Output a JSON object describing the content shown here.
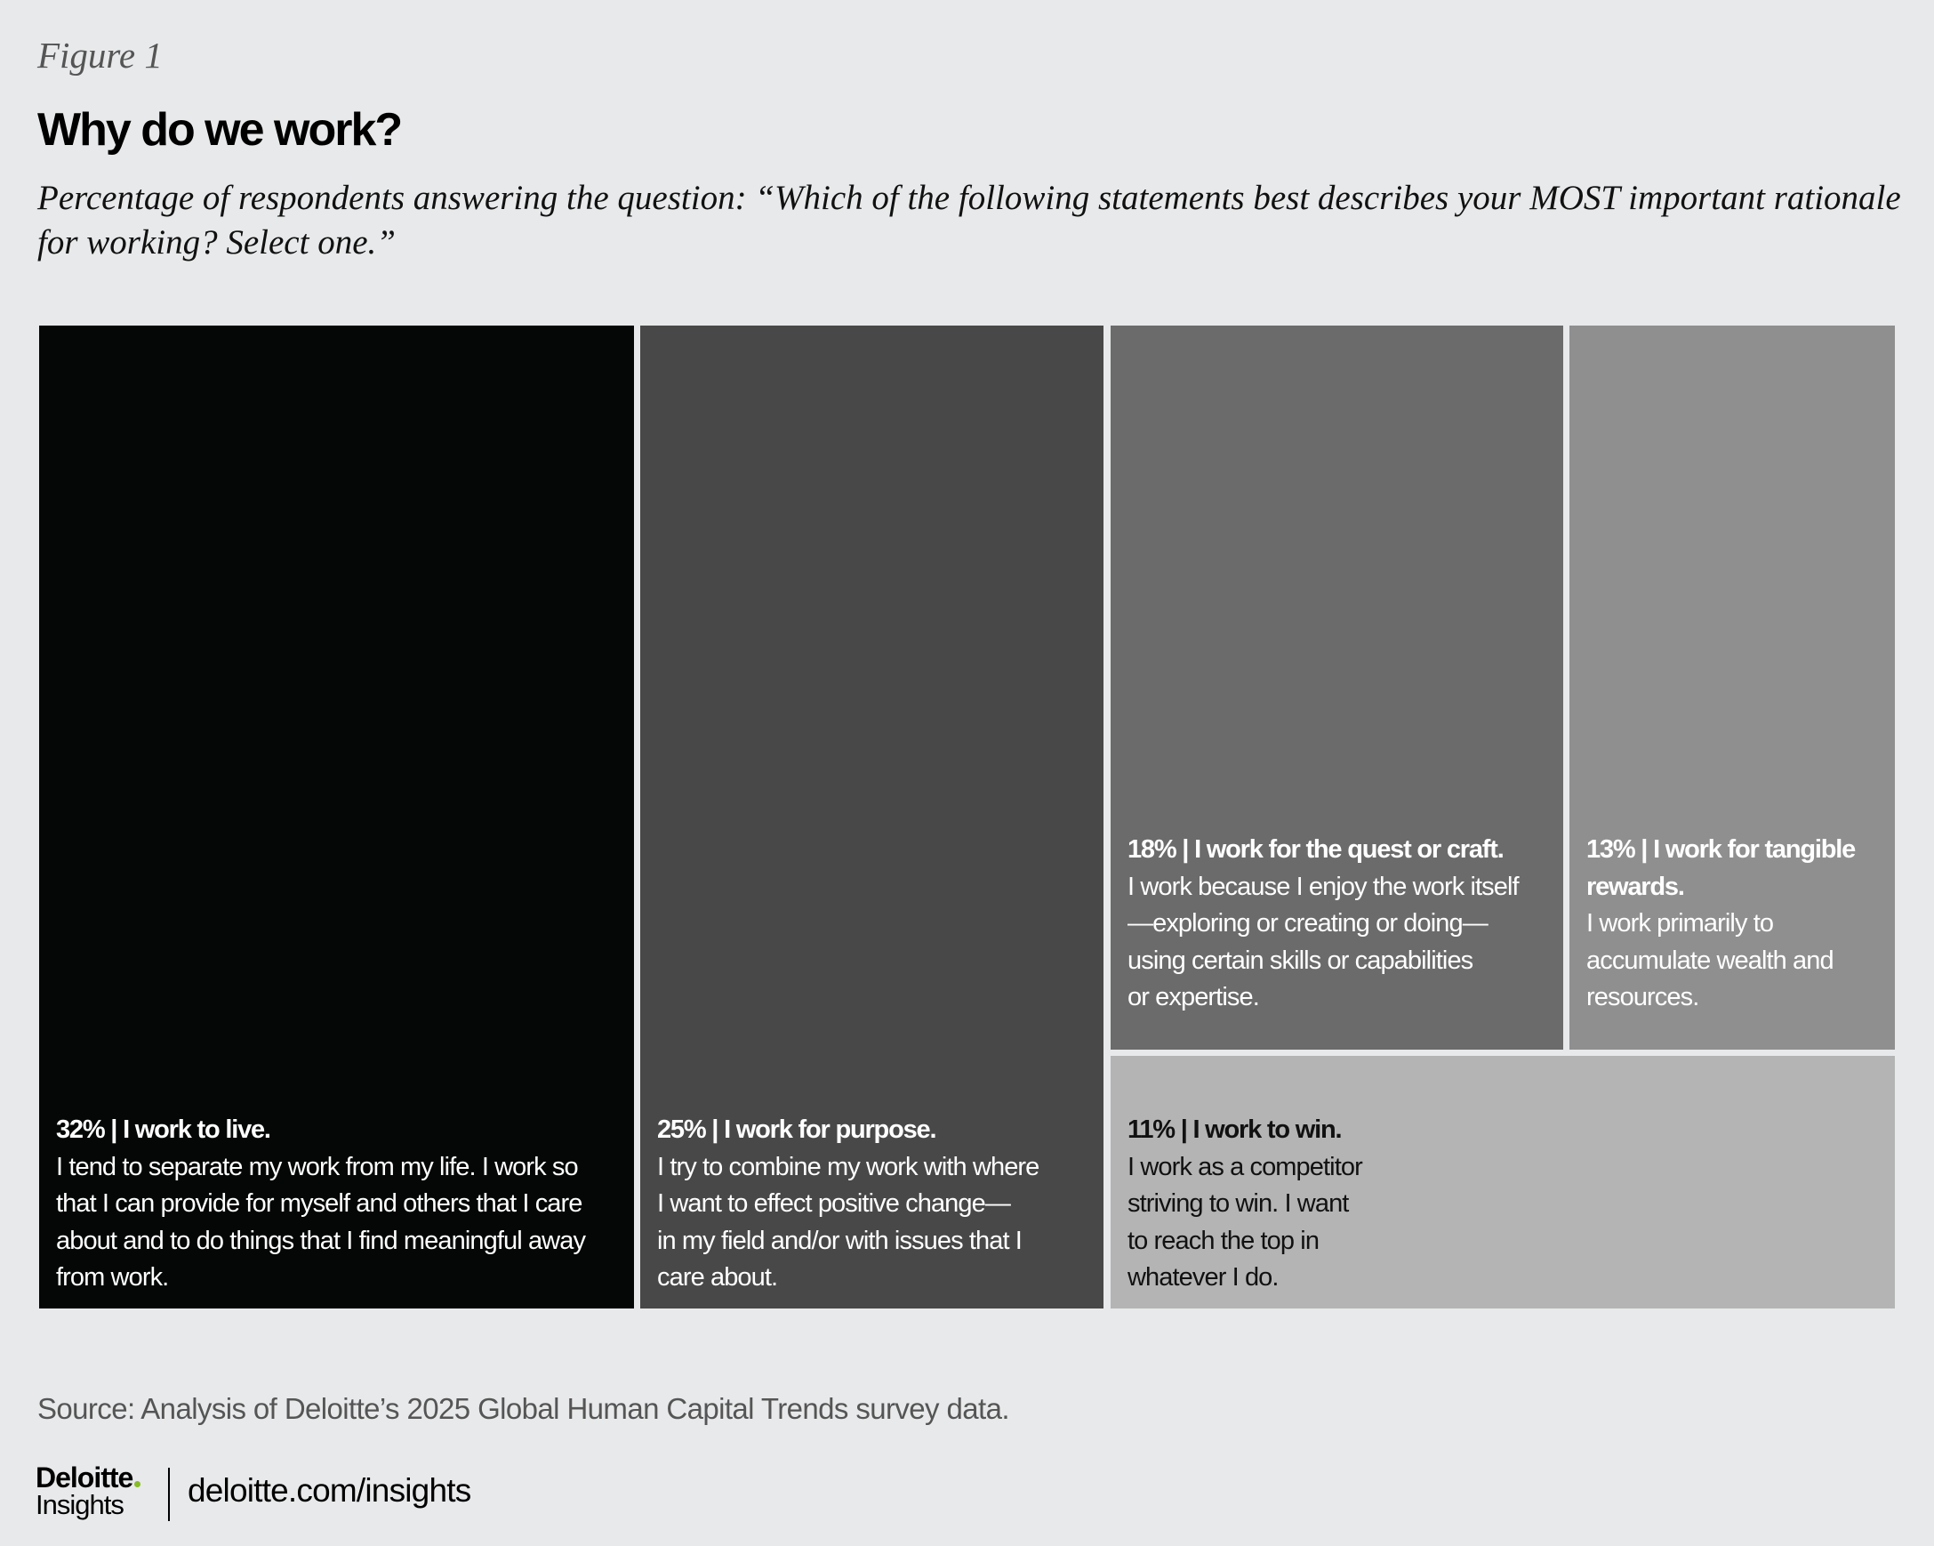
{
  "figure_label": "Figure 1",
  "title": "Why do we work?",
  "subtitle": "Percentage of respondents answering the question: “Which of the following statements best describes your MOST important rationale for working? Select one.”",
  "chart_data": {
    "type": "treemap",
    "title": "Why do we work?",
    "items": [
      {
        "value": 32,
        "heading": "32% | I work to live.",
        "lines": [
          "I tend to separate my work from my life. I work so",
          "that I can provide for myself and others that I care",
          "about and to do things that I find meaningful away",
          "from work."
        ],
        "color": "#050707",
        "text_color": "#ffffff"
      },
      {
        "value": 25,
        "heading": "25% | I work for purpose.",
        "lines": [
          "I try to combine my work with where",
          "I want to effect positive change—",
          "in my field and/or with issues that I",
          "care about."
        ],
        "color": "#484848",
        "text_color": "#ffffff"
      },
      {
        "value": 18,
        "heading": "18% | I work for the quest or craft.",
        "lines": [
          "I work because I enjoy the work itself",
          "—exploring or creating or doing—",
          "using certain skills or capabilities",
          "or expertise."
        ],
        "color": "#6b6b6b",
        "text_color": "#ffffff"
      },
      {
        "value": 13,
        "heading_lines": [
          "13% | I work for tangible",
          "rewards."
        ],
        "lines": [
          "I work primarily to",
          "accumulate wealth and",
          "resources."
        ],
        "color": "#8f8f8f",
        "text_color": "#ffffff"
      },
      {
        "value": 11,
        "heading": "11% | I work to win.",
        "lines": [
          "I work as a competitor",
          "striving to win. I want",
          "to reach the top in",
          "whatever I do."
        ],
        "color": "#b4b4b4",
        "text_color": "#111111"
      }
    ]
  },
  "source": "Source: Analysis of Deloitte’s 2025 Global Human Capital Trends survey data.",
  "footer": {
    "logo_top": "Deloitte",
    "logo_bottom": "Insights",
    "logo_accent": "#86bc25",
    "url": "deloitte.com/insights"
  }
}
